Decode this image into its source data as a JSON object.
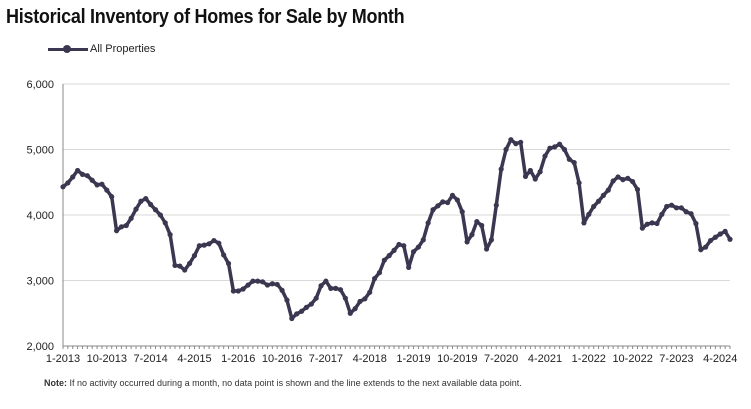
{
  "title": "Historical Inventory of Homes for Sale by Month",
  "note": {
    "label": "Note:",
    "text": "If no activity occurred during a month, no data point is shown and the line extends to the next available data point."
  },
  "colors": {
    "line": "#3b3750",
    "grid": "#d9d9d9",
    "axis": "#888888",
    "text": "#222222"
  },
  "chart_data": {
    "type": "line",
    "title": "Historical Inventory of Homes for Sale by Month",
    "xlabel": "",
    "ylabel": "",
    "ylim": [
      2000,
      6000
    ],
    "y_ticks": [
      2000,
      3000,
      4000,
      5000,
      6000
    ],
    "y_tick_labels": [
      "2,000",
      "3,000",
      "4,000",
      "5,000",
      "6,000"
    ],
    "x_tick_labels": [
      "1-2013",
      "10-2013",
      "7-2014",
      "4-2015",
      "1-2016",
      "10-2016",
      "7-2017",
      "4-2018",
      "1-2019",
      "10-2019",
      "7-2020",
      "4-2021",
      "1-2022",
      "10-2022",
      "7-2023",
      "4-2024"
    ],
    "x_tick_step": 9,
    "legend": "top-left",
    "grid": true,
    "series": [
      {
        "name": "All Properties",
        "start": "1-2013",
        "values": [
          4430,
          4490,
          4580,
          4680,
          4620,
          4600,
          4530,
          4460,
          4470,
          4380,
          4280,
          3760,
          3820,
          3840,
          3950,
          4090,
          4210,
          4250,
          4160,
          4080,
          4000,
          3880,
          3700,
          3230,
          3220,
          3160,
          3260,
          3380,
          3530,
          3540,
          3560,
          3610,
          3570,
          3390,
          3260,
          2840,
          2840,
          2870,
          2930,
          2990,
          2990,
          2980,
          2930,
          2950,
          2940,
          2850,
          2700,
          2420,
          2490,
          2530,
          2590,
          2640,
          2730,
          2920,
          2990,
          2880,
          2880,
          2860,
          2730,
          2500,
          2570,
          2680,
          2720,
          2820,
          3030,
          3120,
          3310,
          3380,
          3460,
          3550,
          3530,
          3200,
          3440,
          3510,
          3620,
          3880,
          4080,
          4140,
          4200,
          4190,
          4300,
          4230,
          4050,
          3590,
          3700,
          3900,
          3840,
          3480,
          3620,
          4150,
          4700,
          5000,
          5150,
          5090,
          5110,
          4590,
          4680,
          4550,
          4660,
          4900,
          5020,
          5040,
          5080,
          5000,
          4850,
          4800,
          4490,
          3880,
          4010,
          4130,
          4210,
          4300,
          4380,
          4520,
          4580,
          4540,
          4560,
          4510,
          4390,
          3800,
          3860,
          3880,
          3870,
          4010,
          4130,
          4150,
          4110,
          4110,
          4050,
          4020,
          3870,
          3470,
          3510,
          3610,
          3660,
          3710,
          3750,
          3630
        ]
      }
    ]
  }
}
